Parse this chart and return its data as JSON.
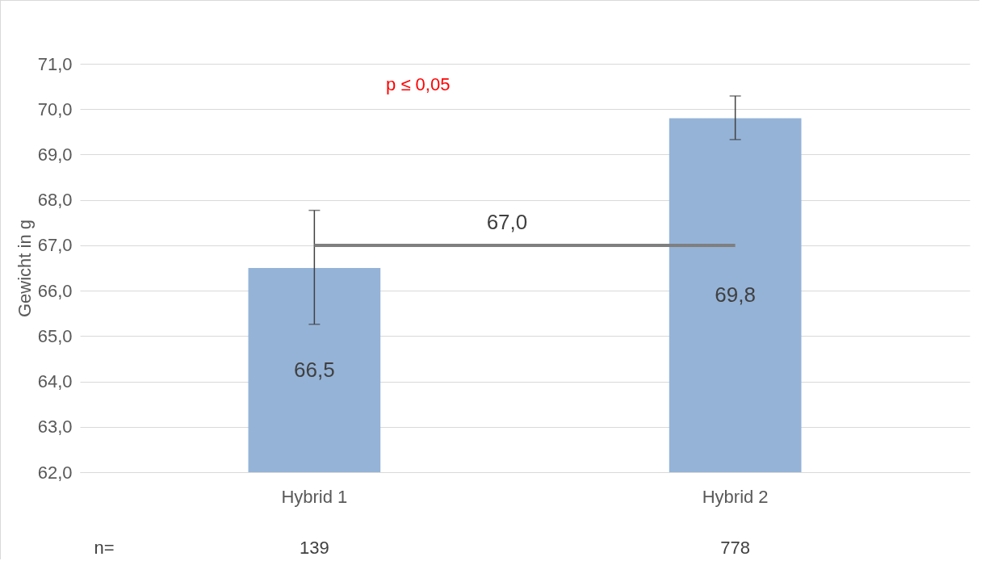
{
  "chart_data": {
    "type": "bar",
    "ylabel": "Gewicht in g",
    "categories": [
      "Hybrid 1",
      "Hybrid 2"
    ],
    "series": [
      {
        "color": "#95b3d7",
        "values": [
          66.5,
          69.8
        ],
        "errors": [
          [
            65.26,
            67.77
          ],
          [
            69.33,
            70.29
          ]
        ],
        "value_labels": [
          "66,5",
          "69,8"
        ]
      }
    ],
    "ylim": [
      62,
      71
    ],
    "yticks": [
      {
        "value": 62,
        "label": "62,0"
      },
      {
        "value": 63,
        "label": "63,0"
      },
      {
        "value": 64,
        "label": "64,0"
      },
      {
        "value": 65,
        "label": "65,0"
      },
      {
        "value": 66,
        "label": "66,0"
      },
      {
        "value": 67,
        "label": "67,0"
      },
      {
        "value": 68,
        "label": "68,0"
      },
      {
        "value": 69,
        "label": "69,0"
      },
      {
        "value": 70,
        "label": "70,0"
      },
      {
        "value": 71,
        "label": "71,0"
      }
    ],
    "grid": "y",
    "ref_lines": [
      {
        "axis": "y",
        "value": 67,
        "label": "67,0",
        "color": "#7f7f7f"
      }
    ],
    "annotations": [
      "p ≤ 0,05",
      "n=",
      "139",
      "778"
    ]
  }
}
